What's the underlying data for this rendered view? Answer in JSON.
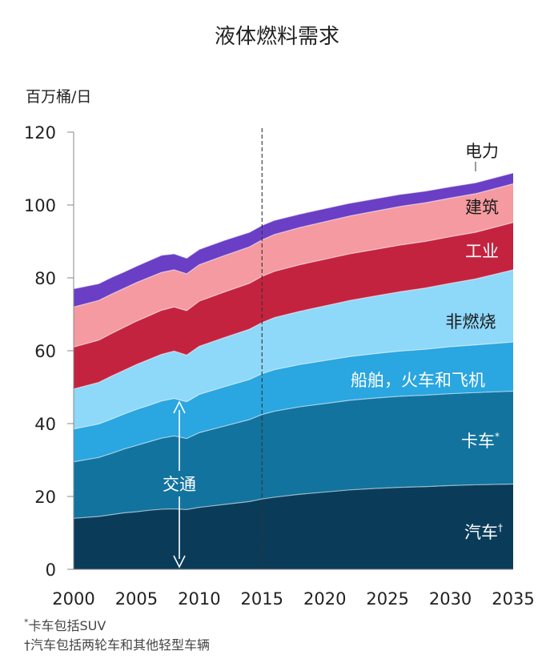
{
  "chart_data": {
    "type": "area",
    "stacked": true,
    "title": "液体燃料需求",
    "ylabel": "百万桶/日",
    "xlim": [
      2000,
      2035
    ],
    "ylim": [
      0,
      120
    ],
    "x_ticks": [
      2000,
      2005,
      2010,
      2015,
      2020,
      2025,
      2030,
      2035
    ],
    "y_ticks": [
      0,
      20,
      40,
      60,
      80,
      100,
      120
    ],
    "x": [
      2000,
      2002,
      2003,
      2004,
      2005,
      2006,
      2007,
      2008,
      2009,
      2010,
      2012,
      2014,
      2015,
      2016,
      2018,
      2020,
      2022,
      2024,
      2026,
      2028,
      2030,
      2032,
      2035
    ],
    "series": [
      {
        "name": "汽车",
        "mark": "†",
        "color": "#0a3c5a",
        "values": [
          14,
          14.5,
          15,
          15.5,
          15.8,
          16.2,
          16.5,
          16.6,
          16.4,
          17,
          17.8,
          18.6,
          19.3,
          19.8,
          20.6,
          21.2,
          21.8,
          22.2,
          22.5,
          22.7,
          23,
          23.2,
          23.4
        ]
      },
      {
        "name": "卡车",
        "mark": "*",
        "color": "#12739e",
        "values": [
          15.5,
          16.2,
          16.8,
          17.5,
          18.2,
          18.8,
          19.5,
          20,
          19.5,
          20.5,
          21.5,
          22.5,
          23.2,
          23.6,
          24,
          24.3,
          24.6,
          24.8,
          25,
          25.1,
          25.2,
          25.3,
          25.5
        ]
      },
      {
        "name": "船舶，火车和飞机",
        "mark": "",
        "color": "#2aa6e0",
        "values": [
          9,
          9.2,
          9.4,
          9.6,
          9.9,
          10,
          10.2,
          10.3,
          10.1,
          10.5,
          10.8,
          11,
          11.2,
          11.4,
          11.6,
          11.8,
          12,
          12.2,
          12.4,
          12.6,
          12.9,
          13.1,
          13.5
        ]
      },
      {
        "name": "非燃烧",
        "mark": "",
        "color": "#8ed8fa",
        "values": [
          11,
          11.4,
          11.8,
          12,
          12.3,
          12.6,
          12.8,
          13,
          12.8,
          13.2,
          13.5,
          13.8,
          14,
          14.3,
          14.6,
          15,
          15.4,
          15.8,
          16.3,
          16.8,
          17.4,
          18.1,
          19.8
        ]
      },
      {
        "name": "工业",
        "mark": "",
        "color": "#c4233f",
        "values": [
          11.5,
          11.6,
          11.7,
          11.8,
          11.9,
          12,
          12.1,
          12.1,
          12.2,
          12.4,
          12.5,
          12.6,
          12.7,
          12.7,
          12.8,
          12.8,
          12.8,
          12.8,
          12.8,
          12.8,
          12.8,
          12.8,
          13
        ]
      },
      {
        "name": "建筑",
        "mark": "",
        "color": "#f59aa0",
        "values": [
          11,
          10.9,
          10.8,
          10.7,
          10.6,
          10.5,
          10.4,
          10.2,
          10.1,
          10,
          10,
          10,
          10,
          10.1,
          10.2,
          10.3,
          10.4,
          10.5,
          10.6,
          10.6,
          10.6,
          10.6,
          10.6
        ]
      },
      {
        "name": "电力",
        "mark": "",
        "color": "#6a3fc6",
        "values": [
          5,
          4.6,
          4.6,
          4.5,
          4.5,
          4.6,
          4.7,
          4.4,
          4.3,
          4.2,
          4.2,
          4,
          4,
          3.9,
          3.7,
          3.6,
          3.5,
          3.4,
          3.3,
          3.2,
          3.1,
          3.0,
          3.0
        ]
      }
    ],
    "projection_start": 2015,
    "annotation": "交通"
  },
  "footnotes": [
    {
      "mark": "*",
      "text": "卡车包括SUV"
    },
    {
      "mark": "†",
      "text": "汽车包括两轮车和其他轻型车辆"
    }
  ]
}
